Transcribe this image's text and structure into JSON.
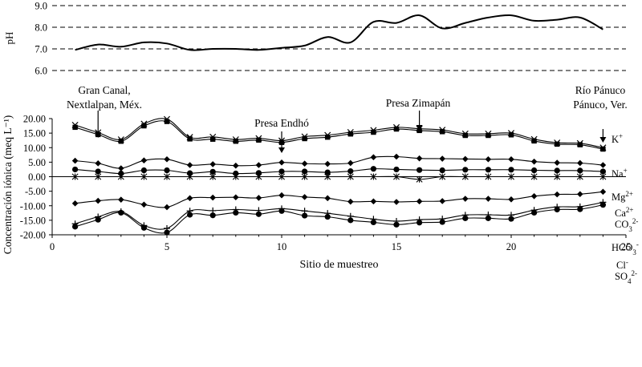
{
  "chart_data": [
    {
      "type": "line",
      "ylabel": "pH",
      "ylim": [
        6.0,
        9.0
      ],
      "yticks": [
        "6.0",
        "7.0",
        "8.0",
        "9.0"
      ],
      "grid": "dashed horizontal",
      "x": [
        1,
        2,
        3,
        4,
        5,
        6,
        7,
        8,
        9,
        10,
        11,
        12,
        13,
        14,
        15,
        16,
        17,
        18,
        19,
        20,
        21,
        22,
        23,
        24
      ],
      "series": [
        {
          "values": [
            6.95,
            7.2,
            7.1,
            7.3,
            7.25,
            6.95,
            7.0,
            7.0,
            6.95,
            7.05,
            7.15,
            7.55,
            7.3,
            8.25,
            8.2,
            8.55,
            7.95,
            8.2,
            8.45,
            8.55,
            8.3,
            8.35,
            8.45,
            7.9
          ]
        }
      ]
    },
    {
      "type": "line",
      "xlabel": "Sitio de muestreo",
      "ylabel": "Concentración iónica (meq L⁻¹)",
      "xlim": [
        0,
        25
      ],
      "ylim": [
        -20,
        20
      ],
      "xticks": [
        "0",
        "5",
        "10",
        "15",
        "20",
        "25"
      ],
      "yticks": [
        "-20.00",
        "-15.00",
        "-10.00",
        "-5.00",
        "0.00",
        "5.00",
        "10.00",
        "15.00",
        "20.00"
      ],
      "x": [
        1,
        2,
        3,
        4,
        5,
        6,
        7,
        8,
        9,
        10,
        11,
        12,
        13,
        14,
        15,
        16,
        17,
        18,
        19,
        20,
        21,
        22,
        23,
        24
      ],
      "series": [
        {
          "name": "K⁺",
          "marker": "x",
          "values": [
            17.8,
            15.2,
            12.8,
            18.2,
            19.8,
            13.6,
            13.7,
            12.8,
            13.2,
            12.4,
            13.8,
            14.3,
            15.3,
            16.0,
            17.0,
            16.5,
            16.1,
            14.8,
            14.8,
            15.0,
            12.9,
            11.7,
            11.5,
            10.0
          ]
        },
        {
          "name": "Na⁺",
          "marker": "square",
          "values": [
            17.0,
            14.5,
            12.2,
            17.5,
            19.0,
            13.0,
            12.9,
            12.2,
            12.6,
            11.8,
            13.1,
            13.6,
            14.7,
            15.3,
            16.4,
            15.9,
            15.5,
            14.2,
            14.2,
            14.4,
            12.3,
            11.2,
            11.0,
            9.5
          ]
        },
        {
          "name": "Mg²⁺",
          "marker": "diamond",
          "values": [
            5.5,
            4.6,
            2.9,
            5.6,
            6.0,
            4.0,
            4.3,
            3.8,
            4.0,
            4.9,
            4.5,
            4.4,
            4.7,
            6.7,
            6.9,
            6.3,
            6.2,
            6.1,
            6.0,
            6.0,
            5.2,
            4.8,
            4.7,
            4.0
          ]
        },
        {
          "name": "Ca²⁺",
          "marker": "circle",
          "values": [
            2.5,
            1.8,
            1.1,
            2.2,
            2.2,
            1.2,
            1.7,
            1.1,
            1.3,
            1.8,
            1.8,
            1.5,
            1.9,
            2.7,
            2.5,
            2.3,
            2.2,
            2.4,
            2.4,
            2.4,
            2.2,
            2.1,
            2.1,
            1.8
          ]
        },
        {
          "name": "CO₃²⁻",
          "marker": "asterisk",
          "values": [
            0,
            0,
            0,
            0,
            0,
            0,
            0,
            0,
            0,
            0,
            0,
            0,
            0,
            0,
            0,
            -0.9,
            0,
            0,
            0,
            0,
            0,
            0,
            0,
            0
          ]
        },
        {
          "name": "HCO₃⁻",
          "marker": "diamond",
          "values": [
            -9.2,
            -8.3,
            -7.9,
            -9.6,
            -10.5,
            -7.4,
            -7.2,
            -7.1,
            -7.3,
            -6.4,
            -7.0,
            -7.4,
            -8.6,
            -8.5,
            -8.7,
            -8.5,
            -8.4,
            -7.6,
            -7.6,
            -7.8,
            -6.7,
            -6.1,
            -6.0,
            -5.2
          ]
        },
        {
          "name": "Cl⁻",
          "marker": "plus",
          "values": [
            -16.2,
            -13.8,
            -12.0,
            -16.8,
            -17.8,
            -11.8,
            -11.7,
            -11.3,
            -11.6,
            -11.0,
            -11.8,
            -12.6,
            -13.6,
            -14.6,
            -15.3,
            -14.8,
            -14.5,
            -13.2,
            -13.1,
            -13.2,
            -11.5,
            -10.4,
            -10.3,
            -8.8
          ]
        },
        {
          "name": "SO₄²⁻",
          "marker": "circle",
          "values": [
            -17.2,
            -14.8,
            -12.4,
            -17.6,
            -19.2,
            -13.1,
            -13.3,
            -12.4,
            -12.9,
            -11.8,
            -13.4,
            -13.8,
            -15.0,
            -15.7,
            -16.5,
            -15.8,
            -15.6,
            -14.3,
            -14.3,
            -14.5,
            -12.4,
            -11.3,
            -11.2,
            -9.7
          ]
        }
      ],
      "annotations": [
        {
          "lines": [
            "Gran Canal,",
            "Nextlalpan, Méx."
          ],
          "x": 2
        },
        {
          "lines": [
            "Presa Endhó"
          ],
          "x": 10
        },
        {
          "lines": [
            "Presa Zimapán"
          ],
          "x": 16
        },
        {
          "lines": [
            "Río Pánuco",
            "Pánuco, Ver."
          ],
          "x": 24
        }
      ]
    }
  ]
}
